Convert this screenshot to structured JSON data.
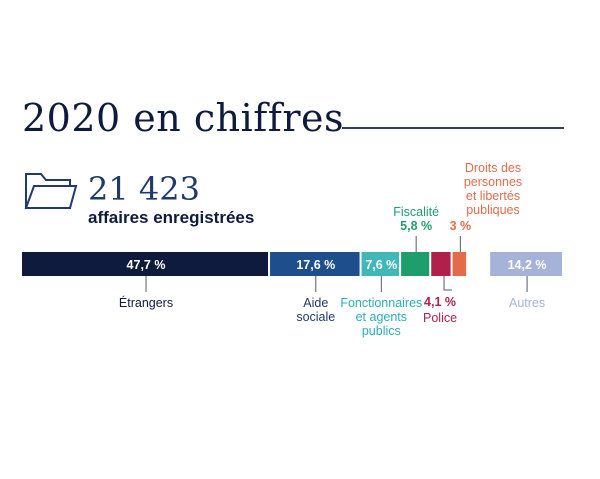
{
  "header": {
    "title": "2020 en chiffres"
  },
  "summary": {
    "count": "21 423",
    "label": "affaires enregistrées",
    "icon": "folder-icon"
  },
  "chart_data": {
    "type": "bar",
    "orientation": "horizontal-stacked",
    "unit": "%",
    "categories": [
      "Étrangers",
      "Aide sociale",
      "Fonctionnaires et agents publics",
      "Fiscalité",
      "Police",
      "Droits des personnes et libertés publiques",
      "Autres"
    ],
    "values": [
      47.7,
      17.6,
      7.6,
      5.8,
      4.1,
      3,
      14.2
    ],
    "value_labels": [
      "47,7 %",
      "17,6 %",
      "7,6 %",
      "5,8 %",
      "4,1 %",
      "3 %",
      "14,2 %"
    ],
    "label_lines": [
      [
        "Étrangers"
      ],
      [
        "Aide",
        "sociale"
      ],
      [
        "Fonctionnaires",
        "et agents",
        "publics"
      ],
      [
        "Fiscalité"
      ],
      [
        "Police"
      ],
      [
        "Droits des",
        "personnes",
        "et libertés",
        "publiques"
      ],
      [
        "Autres"
      ]
    ],
    "colors": [
      "#0f1b3d",
      "#1f4e8c",
      "#40b8b8",
      "#1e9e6c",
      "#b0204a",
      "#e36b4b",
      "#a6b3d9"
    ],
    "label_colors": [
      "#0f1b3d",
      "#1f3a6b",
      "#2bb0b0",
      "#1e9e6c",
      "#b0204a",
      "#e36b4b",
      "#a6b3d9"
    ]
  }
}
